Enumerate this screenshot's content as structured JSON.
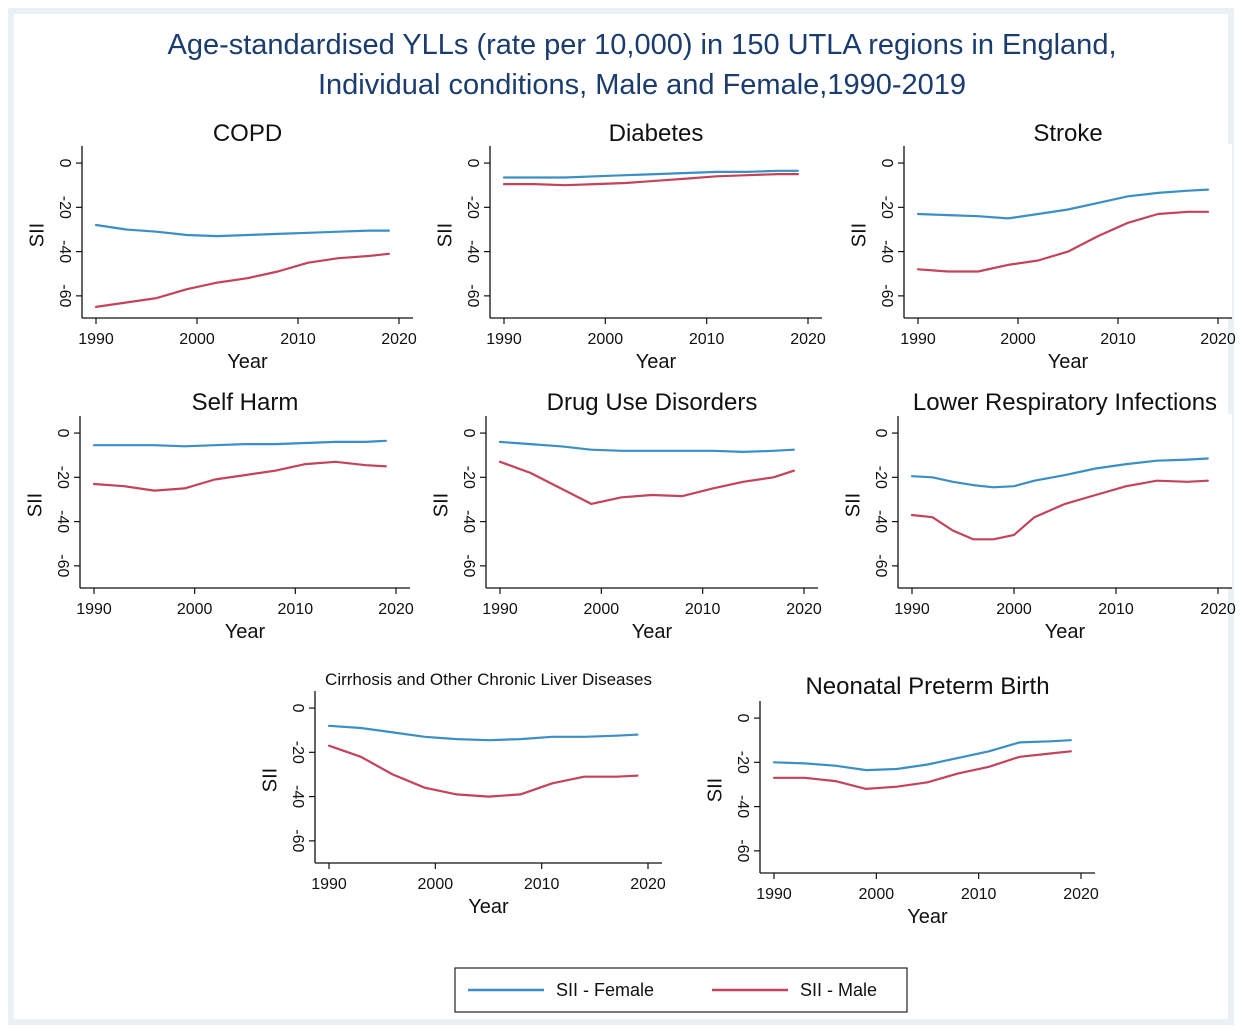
{
  "figure": {
    "title_line1": "Age-standardised YLLs (rate per 10,000) in 150 UTLA regions in England,",
    "title_line2": "Individual conditions, Male and Female,1990-2019"
  },
  "colors": {
    "background": "#ffffff",
    "panel_region": "#ffffff",
    "frame": "#e3ebf0",
    "axis": "#111111",
    "female": "#3a8fc7",
    "male": "#c4435a",
    "title": "#1a3c6e"
  },
  "legend": {
    "items": [
      {
        "label": "SII - Female",
        "color": "#3a8fc7"
      },
      {
        "label": "SII - Male",
        "color": "#c4435a"
      }
    ],
    "position": "bottom-center"
  },
  "chart_data": [
    {
      "type": "line",
      "title": "COPD",
      "xlabel": "Year",
      "ylabel": "SII",
      "xlim": [
        1990,
        2020
      ],
      "ylim": [
        -70,
        5
      ],
      "xticks": [
        1990,
        2000,
        2010,
        2020
      ],
      "yticks": [
        0,
        -20,
        -40,
        -60
      ],
      "grid": false,
      "x": [
        1990,
        1993,
        1996,
        1999,
        2002,
        2005,
        2008,
        2011,
        2014,
        2017,
        2019
      ],
      "series": [
        {
          "name": "SII - Female",
          "values": [
            -28,
            -30,
            -31,
            -32.5,
            -33,
            -32.5,
            -32,
            -31.5,
            -31,
            -30.5,
            -30.5
          ]
        },
        {
          "name": "SII - Male",
          "values": [
            -65,
            -63,
            -61,
            -57,
            -54,
            -52,
            -49,
            -45,
            -43,
            -42,
            -41
          ]
        }
      ]
    },
    {
      "type": "line",
      "title": "Diabetes",
      "xlabel": "Year",
      "ylabel": "SII",
      "xlim": [
        1990,
        2020
      ],
      "ylim": [
        -70,
        5
      ],
      "xticks": [
        1990,
        2000,
        2010,
        2020
      ],
      "yticks": [
        0,
        -20,
        -40,
        -60
      ],
      "grid": false,
      "x": [
        1990,
        1993,
        1996,
        1999,
        2002,
        2005,
        2008,
        2011,
        2014,
        2017,
        2019
      ],
      "series": [
        {
          "name": "SII - Female",
          "values": [
            -6.5,
            -6.5,
            -6.5,
            -6,
            -5.5,
            -5,
            -4.5,
            -4,
            -4,
            -3.5,
            -3.5
          ]
        },
        {
          "name": "SII - Male",
          "values": [
            -9.5,
            -9.5,
            -10,
            -9.5,
            -9,
            -8,
            -7,
            -6,
            -5.5,
            -5,
            -5
          ]
        }
      ]
    },
    {
      "type": "line",
      "title": "Stroke",
      "xlabel": "Year",
      "ylabel": "SII",
      "xlim": [
        1990,
        2020
      ],
      "ylim": [
        -70,
        5
      ],
      "xticks": [
        1990,
        2000,
        2010,
        2020
      ],
      "yticks": [
        0,
        -20,
        -40,
        -60
      ],
      "grid": false,
      "x": [
        1990,
        1993,
        1996,
        1999,
        2002,
        2005,
        2008,
        2011,
        2014,
        2017,
        2019
      ],
      "series": [
        {
          "name": "SII - Female",
          "values": [
            -23,
            -23.5,
            -24,
            -25,
            -23,
            -21,
            -18,
            -15,
            -13.5,
            -12.5,
            -12
          ]
        },
        {
          "name": "SII - Male",
          "values": [
            -48,
            -49,
            -49,
            -46,
            -44,
            -40,
            -33,
            -27,
            -23,
            -22,
            -22
          ]
        }
      ]
    },
    {
      "type": "line",
      "title": "Self Harm",
      "xlabel": "Year",
      "ylabel": "SII",
      "xlim": [
        1990,
        2020
      ],
      "ylim": [
        -70,
        5
      ],
      "xticks": [
        1990,
        2000,
        2010,
        2020
      ],
      "yticks": [
        0,
        -20,
        -40,
        -60
      ],
      "grid": false,
      "x": [
        1990,
        1993,
        1996,
        1999,
        2002,
        2005,
        2008,
        2011,
        2014,
        2017,
        2019
      ],
      "series": [
        {
          "name": "SII - Female",
          "values": [
            -5.5,
            -5.5,
            -5.5,
            -6,
            -5.5,
            -5,
            -5,
            -4.5,
            -4,
            -4,
            -3.5
          ]
        },
        {
          "name": "SII - Male",
          "values": [
            -23,
            -24,
            -26,
            -25,
            -21,
            -19,
            -17,
            -14,
            -13,
            -14.5,
            -15
          ]
        }
      ]
    },
    {
      "type": "line",
      "title": "Drug Use Disorders",
      "xlabel": "Year",
      "ylabel": "SII",
      "xlim": [
        1990,
        2020
      ],
      "ylim": [
        -70,
        5
      ],
      "xticks": [
        1990,
        2000,
        2010,
        2020
      ],
      "yticks": [
        0,
        -20,
        -40,
        -60
      ],
      "grid": false,
      "x": [
        1990,
        1993,
        1996,
        1999,
        2002,
        2005,
        2008,
        2011,
        2014,
        2017,
        2019
      ],
      "series": [
        {
          "name": "SII - Female",
          "values": [
            -4,
            -5,
            -6,
            -7.5,
            -8,
            -8,
            -8,
            -8,
            -8.5,
            -8,
            -7.5
          ]
        },
        {
          "name": "SII - Male",
          "values": [
            -13,
            -18,
            -25,
            -32,
            -29,
            -28,
            -28.5,
            -25,
            -22,
            -20,
            -17
          ]
        }
      ]
    },
    {
      "type": "line",
      "title": "Lower Respiratory Infections",
      "xlabel": "Year",
      "ylabel": "SII",
      "xlim": [
        1990,
        2020
      ],
      "ylim": [
        -70,
        5
      ],
      "xticks": [
        1990,
        2000,
        2010,
        2020
      ],
      "yticks": [
        0,
        -20,
        -40,
        -60
      ],
      "grid": false,
      "x": [
        1990,
        1992,
        1994,
        1996,
        1998,
        2000,
        2002,
        2005,
        2008,
        2011,
        2014,
        2017,
        2019
      ],
      "series": [
        {
          "name": "SII - Female",
          "values": [
            -19.5,
            -20,
            -22,
            -23.5,
            -24.5,
            -24,
            -21.5,
            -19,
            -16,
            -14,
            -12.5,
            -12,
            -11.5
          ]
        },
        {
          "name": "SII - Male",
          "values": [
            -37,
            -38,
            -44,
            -48,
            -48,
            -46,
            -38,
            -32,
            -28,
            -24,
            -21.5,
            -22,
            -21.5
          ]
        }
      ]
    },
    {
      "type": "line",
      "title": "Cirrhosis and Other Chronic Liver Diseases",
      "xlabel": "Year",
      "ylabel": "SII",
      "xlim": [
        1990,
        2020
      ],
      "ylim": [
        -70,
        5
      ],
      "xticks": [
        1990,
        2000,
        2010,
        2020
      ],
      "yticks": [
        0,
        -20,
        -40,
        -60
      ],
      "grid": false,
      "x": [
        1990,
        1993,
        1996,
        1999,
        2002,
        2005,
        2008,
        2011,
        2014,
        2017,
        2019
      ],
      "series": [
        {
          "name": "SII - Female",
          "values": [
            -8,
            -9,
            -11,
            -13,
            -14,
            -14.5,
            -14,
            -13,
            -13,
            -12.5,
            -12
          ]
        },
        {
          "name": "SII - Male",
          "values": [
            -17,
            -22,
            -30,
            -36,
            -39,
            -40,
            -39,
            -34,
            -31,
            -31,
            -30.5
          ]
        }
      ]
    },
    {
      "type": "line",
      "title": "Neonatal Preterm Birth",
      "xlabel": "Year",
      "ylabel": "SII",
      "xlim": [
        1990,
        2020
      ],
      "ylim": [
        -70,
        5
      ],
      "xticks": [
        1990,
        2000,
        2010,
        2020
      ],
      "yticks": [
        0,
        -20,
        -40,
        -60
      ],
      "grid": false,
      "x": [
        1990,
        1993,
        1996,
        1999,
        2002,
        2005,
        2008,
        2011,
        2014,
        2017,
        2019
      ],
      "series": [
        {
          "name": "SII - Female",
          "values": [
            -20,
            -20.5,
            -21.5,
            -23.5,
            -23,
            -21,
            -18,
            -15,
            -11,
            -10.5,
            -10
          ]
        },
        {
          "name": "SII - Male",
          "values": [
            -27,
            -27,
            -28.5,
            -32,
            -31,
            -29,
            -25,
            -22,
            -17.5,
            -16,
            -15
          ]
        }
      ]
    }
  ]
}
